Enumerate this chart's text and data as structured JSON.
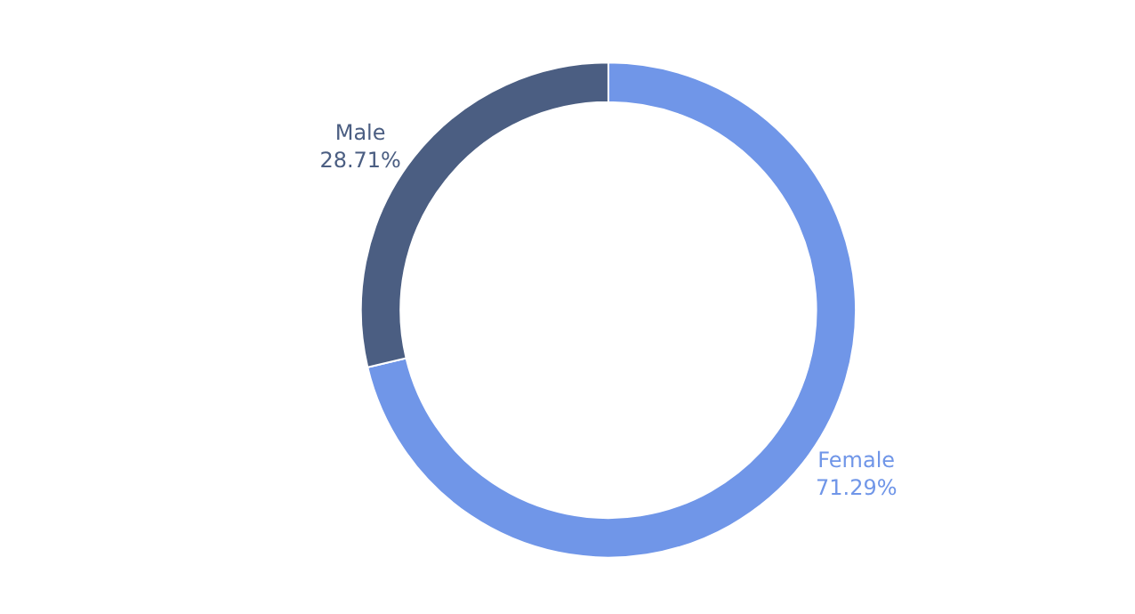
{
  "chart_data": {
    "type": "donut",
    "categories": [
      "Female",
      "Male"
    ],
    "values": [
      71.29,
      28.71
    ],
    "value_labels": [
      "71.29%",
      "28.71%"
    ],
    "colors": [
      "#7096e8",
      "#4b5e82"
    ],
    "legend": false
  }
}
